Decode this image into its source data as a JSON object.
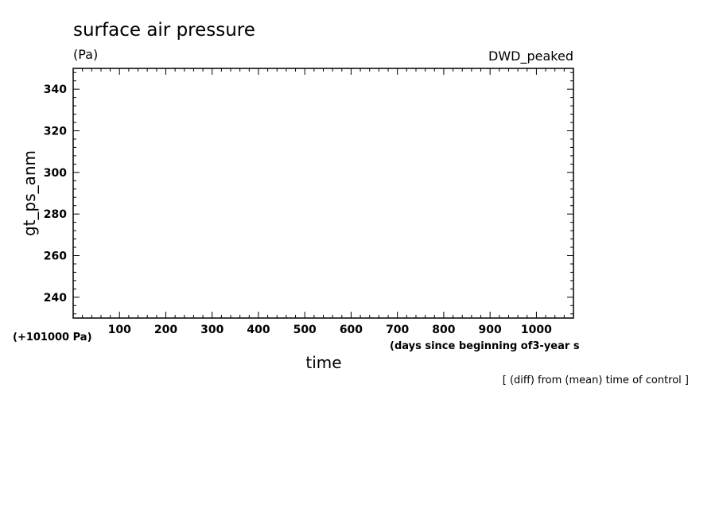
{
  "chart_data": {
    "type": "line",
    "title": "surface air pressure",
    "units": "(Pa)",
    "run_label": "DWD_peaked",
    "ylabel": "gt_ps_anm",
    "xlabel": "time",
    "x_units": "(days since beginning of3-year s",
    "offset_label": "(+101000 Pa)",
    "note": "[ (diff) from (mean) time of control ]",
    "xlim": [
      0,
      1080
    ],
    "ylim": [
      230,
      350
    ],
    "x_ticks": [
      100,
      200,
      300,
      400,
      500,
      600,
      700,
      800,
      900,
      1000
    ],
    "y_ticks": [
      240,
      260,
      280,
      300,
      320,
      340
    ],
    "series": []
  }
}
